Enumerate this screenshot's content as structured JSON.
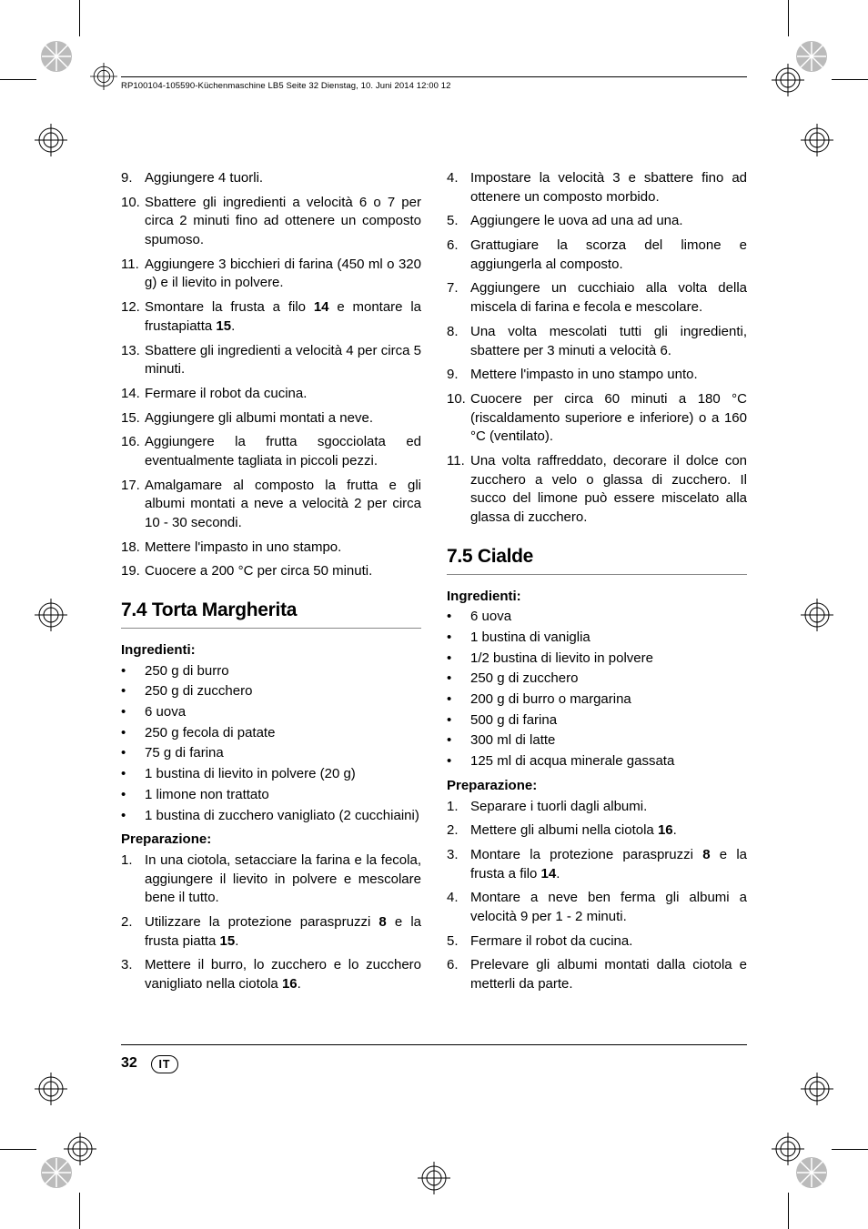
{
  "header": "RP100104-105590-Küchenmaschine LB5  Seite 32  Dienstag, 10. Juni 2014  12:00 12",
  "pageNumber": "32",
  "lang": "IT",
  "left": {
    "steps1": [
      {
        "n": "9.",
        "t": "Aggiungere 4 tuorli."
      },
      {
        "n": "10.",
        "t": "Sbattere gli ingredienti a velocità 6 o 7 per circa 2 minuti fino ad ottenere un composto spumoso."
      },
      {
        "n": "11.",
        "t": "Aggiungere 3 bicchieri di farina (450 ml o 320 g) e il lievito in polvere."
      },
      {
        "n": "12.",
        "t": "Smontare la frusta a filo <b>14</b> e montare la frustapiatta <b>15</b>."
      },
      {
        "n": "13.",
        "t": "Sbattere gli ingredienti a velocità 4 per circa 5 minuti."
      },
      {
        "n": "14.",
        "t": "Fermare il robot da cucina."
      },
      {
        "n": "15.",
        "t": "Aggiungere gli albumi montati a neve."
      },
      {
        "n": "16.",
        "t": "Aggiungere la frutta sgocciolata ed eventualmente tagliata in piccoli pezzi."
      },
      {
        "n": "17.",
        "t": "Amalgamare al composto la frutta e gli albumi montati a neve a velocità 2 per circa 10 - 30 secondi."
      },
      {
        "n": "18.",
        "t": "Mettere l'impasto in uno stampo."
      },
      {
        "n": "19.",
        "t": "Cuocere a 200 °C per circa 50 minuti."
      }
    ],
    "h74": "7.4 Torta Margherita",
    "ingTitle": "Ingredienti:",
    "ing74": [
      "250 g di burro",
      "250 g di zucchero",
      "6 uova",
      "250 g fecola di patate",
      "75 g di farina",
      "1 bustina di lievito in polvere (20 g)",
      "1 limone non trattato",
      "1 bustina di zucchero vanigliato (2 cucchiaini)"
    ],
    "prepTitle": "Preparazione:",
    "prep74": [
      {
        "n": "1.",
        "t": "In una ciotola, setacciare la farina e la fecola, aggiungere il lievito in polvere e mescolare bene il tutto."
      },
      {
        "n": "2.",
        "t": "Utilizzare la protezione paraspruzzi <b>8</b> e la frusta piatta <b>15</b>."
      },
      {
        "n": "3.",
        "t": "Mettere il burro, lo zucchero e lo zucchero vanigliato nella ciotola <b>16</b>."
      }
    ]
  },
  "right": {
    "steps2": [
      {
        "n": "4.",
        "t": "Impostare la velocità 3 e sbattere fino ad ottenere un composto morbido."
      },
      {
        "n": "5.",
        "t": "Aggiungere le uova ad una ad una."
      },
      {
        "n": "6.",
        "t": "Grattugiare la scorza del limone e aggiungerla al composto."
      },
      {
        "n": "7.",
        "t": "Aggiungere un cucchiaio alla volta della miscela di farina e fecola e mescolare."
      },
      {
        "n": "8.",
        "t": "Una volta mescolati tutti gli ingredienti, sbattere per 3 minuti a velocità 6."
      },
      {
        "n": "9.",
        "t": "Mettere l'impasto in uno stampo unto."
      },
      {
        "n": "10.",
        "t": "Cuocere per circa 60 minuti a 180 °C (riscaldamento superiore e inferiore) o a 160 °C (ventilato)."
      },
      {
        "n": "11.",
        "t": "Una volta raffreddato, decorare il dolce con zucchero a velo o glassa di zucchero. Il succo del limone può essere miscelato alla glassa di zucchero."
      }
    ],
    "h75": "7.5 Cialde",
    "ingTitle": "Ingredienti:",
    "ing75": [
      "6 uova",
      "1 bustina di vaniglia",
      "1/2 bustina di lievito in polvere",
      "250 g di zucchero",
      "200 g di burro o margarina",
      "500 g di farina",
      "300 ml di latte",
      "125 ml di acqua minerale gassata"
    ],
    "prepTitle": "Preparazione:",
    "prep75": [
      {
        "n": "1.",
        "t": "Separare i tuorli dagli albumi."
      },
      {
        "n": "2.",
        "t": "Mettere gli albumi nella ciotola <b>16</b>."
      },
      {
        "n": "3.",
        "t": "Montare la protezione paraspruzzi <b>8</b> e la frusta a filo <b>14</b>."
      },
      {
        "n": "4.",
        "t": "Montare a neve ben ferma gli albumi a velocità 9 per 1 - 2 minuti."
      },
      {
        "n": "5.",
        "t": "Fermare il robot da cucina."
      },
      {
        "n": "6.",
        "t": "Prelevare gli albumi montati dalla ciotola e metterli da parte."
      }
    ]
  }
}
